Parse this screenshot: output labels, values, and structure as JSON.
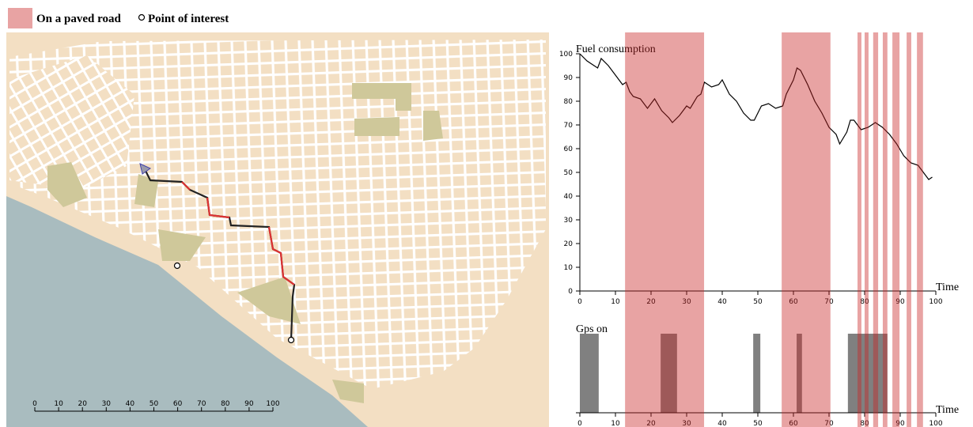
{
  "legend": {
    "paved_road": {
      "label": "On a paved road",
      "color": "#e8a3a3",
      "intervals": [
        [
          12.7,
          34.9
        ],
        [
          56.7,
          70.4
        ],
        [
          78,
          79.1
        ],
        [
          80,
          81.1
        ],
        [
          82.4,
          83.8
        ],
        [
          85.1,
          86.4
        ],
        [
          87.8,
          89.8
        ],
        [
          91.8,
          93.1
        ],
        [
          94.7,
          96.4
        ]
      ]
    },
    "point_of_interest": {
      "label": "Point of interest"
    }
  },
  "map": {
    "scale_ticks": [
      0,
      10,
      20,
      30,
      40,
      50,
      60,
      70,
      80,
      90,
      100
    ]
  },
  "chart_data": [
    {
      "type": "line",
      "ylabel": "Fuel consumption",
      "xlabel": "Time",
      "color": "#000000",
      "x": [
        0,
        2,
        4,
        5,
        6,
        8,
        10,
        12,
        13,
        14,
        15,
        17,
        19,
        21,
        23,
        25,
        26,
        28,
        30,
        31,
        33,
        34,
        35,
        37,
        39,
        40,
        42,
        44,
        46,
        48,
        49,
        51,
        53,
        55,
        57,
        58,
        60,
        61,
        62,
        64,
        66,
        68,
        70,
        72,
        73,
        75,
        76,
        77,
        79,
        81,
        83,
        85,
        87,
        89,
        91,
        93,
        95,
        97,
        98,
        99
      ],
      "values": [
        100,
        97,
        95,
        94,
        98,
        95,
        91,
        87,
        88,
        84,
        82,
        81,
        77,
        81,
        76,
        73,
        71,
        74,
        78,
        77,
        82,
        83,
        88,
        86,
        87,
        89,
        83,
        80,
        75,
        72,
        72,
        78,
        79,
        77,
        78,
        83,
        89,
        94,
        93,
        87,
        80,
        75,
        69,
        66,
        62,
        67,
        72,
        72,
        68,
        69,
        71,
        69,
        66,
        62,
        57,
        54,
        53,
        49,
        47,
        48
      ],
      "xlim": [
        0,
        100
      ],
      "ylim": [
        0,
        100
      ],
      "xticks": [
        0,
        10,
        20,
        30,
        40,
        50,
        60,
        70,
        80,
        90,
        100
      ],
      "yticks": [
        0,
        10,
        20,
        30,
        40,
        50,
        60,
        70,
        80,
        90,
        100
      ]
    },
    {
      "type": "interval",
      "ylabel": "Gps on",
      "xlabel": "Time",
      "color": "#808080",
      "intervals": [
        [
          0,
          5.3
        ],
        [
          22.7,
          27.3
        ],
        [
          48.7,
          50.7
        ],
        [
          60.9,
          62.4
        ],
        [
          75.3,
          86.4
        ]
      ],
      "xlim": [
        0,
        100
      ],
      "xticks": [
        0,
        10,
        20,
        30,
        40,
        50,
        60,
        70,
        80,
        90,
        100
      ]
    }
  ]
}
